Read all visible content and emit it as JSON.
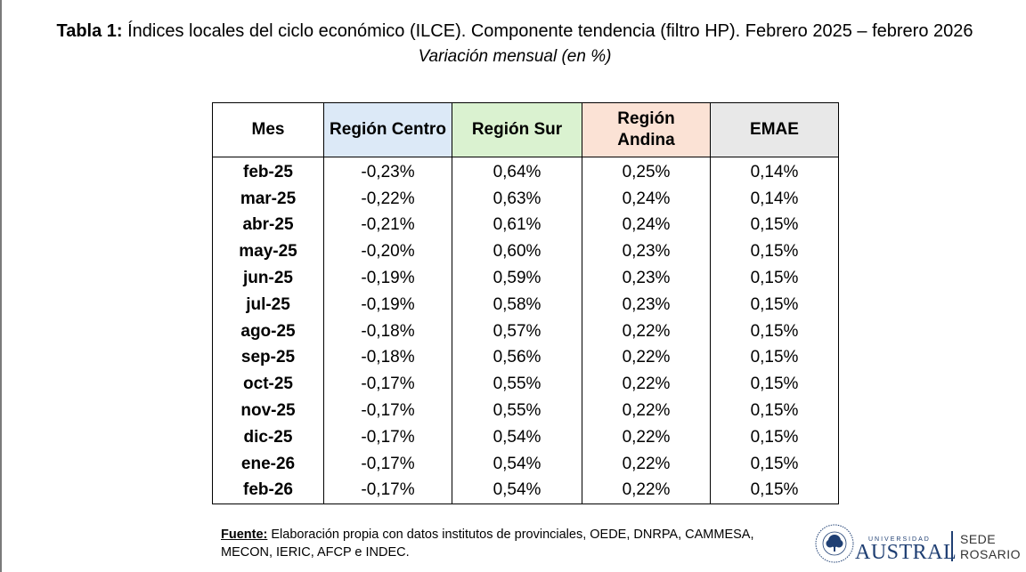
{
  "title": {
    "bold": "Tabla 1:",
    "text": " Índices locales del ciclo económico (ILCE). Componente tendencia (filtro HP). Febrero 2025 – febrero 2026"
  },
  "subtitle": "Variación mensual (en %)",
  "table": {
    "headers": [
      "Mes",
      "Región Centro",
      "Región Sur",
      "Región Andina",
      "EMAE"
    ],
    "header_colors": [
      "#ffffff",
      "#dce9f7",
      "#daf2d0",
      "#fbe2d5",
      "#e8e8e8"
    ],
    "rows": [
      [
        "feb-25",
        "-0,23%",
        "0,64%",
        "0,25%",
        "0,14%"
      ],
      [
        "mar-25",
        "-0,22%",
        "0,63%",
        "0,24%",
        "0,14%"
      ],
      [
        "abr-25",
        "-0,21%",
        "0,61%",
        "0,24%",
        "0,15%"
      ],
      [
        "may-25",
        "-0,20%",
        "0,60%",
        "0,23%",
        "0,15%"
      ],
      [
        "jun-25",
        "-0,19%",
        "0,59%",
        "0,23%",
        "0,15%"
      ],
      [
        "jul-25",
        "-0,19%",
        "0,58%",
        "0,23%",
        "0,15%"
      ],
      [
        "ago-25",
        "-0,18%",
        "0,57%",
        "0,22%",
        "0,15%"
      ],
      [
        "sep-25",
        "-0,18%",
        "0,56%",
        "0,22%",
        "0,15%"
      ],
      [
        "oct-25",
        "-0,17%",
        "0,55%",
        "0,22%",
        "0,15%"
      ],
      [
        "nov-25",
        "-0,17%",
        "0,55%",
        "0,22%",
        "0,15%"
      ],
      [
        "dic-25",
        "-0,17%",
        "0,54%",
        "0,22%",
        "0,15%"
      ],
      [
        "ene-26",
        "-0,17%",
        "0,54%",
        "0,22%",
        "0,15%"
      ],
      [
        "feb-26",
        "-0,17%",
        "0,54%",
        "0,22%",
        "0,15%"
      ]
    ]
  },
  "source": {
    "label": "Fuente:",
    "line1": " Elaboración propia con datos institutos de provinciales, OEDE, DNRPA, CAMMESA,",
    "line2": "MECON, IERIC, AFCP e INDEC."
  },
  "logo": {
    "seal_icon": "university-seal-icon",
    "university_small": "UNIVERSIDAD",
    "university_name": "AUSTRAL",
    "sede_line1": "SEDE",
    "sede_line2": "ROSARIO",
    "brand_color": "#1f3f73"
  }
}
